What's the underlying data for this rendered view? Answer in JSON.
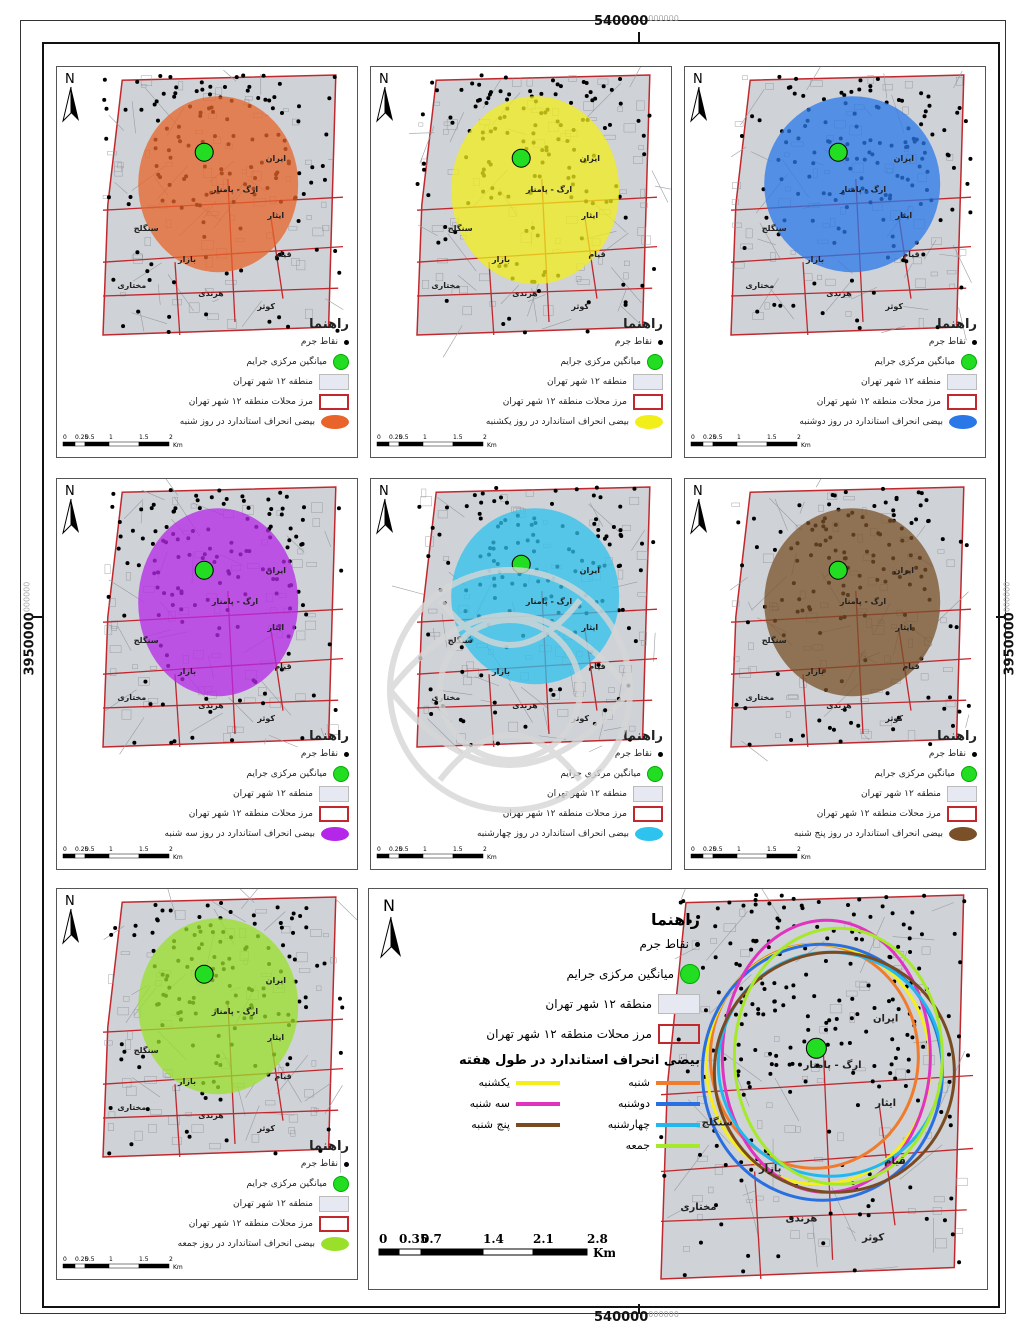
{
  "coords": {
    "x_label": "540000",
    "x_sup": "000000",
    "y_label": "3950000",
    "y_sup": "000000"
  },
  "legend_title": "راهنما",
  "legend_items": {
    "crime_points": "نقاط جرم",
    "mean_center": "میانگین مرکزی جرایم",
    "region": "منطقه ۱۲ شهر تهران",
    "boundary": "مرز محلات منطقه ۱۲ شهر تهران"
  },
  "neighborhoods": {
    "sangelaj": "سنگلج",
    "bazar": "بازار",
    "qiyam": "قیام",
    "hrandi": "هرندی",
    "mokhtari": "مختاری",
    "kowsar": "کوثر",
    "ishar": "ایثار",
    "iran": "ایران",
    "arg": "ارگ - پامنار"
  },
  "north": "N",
  "panels": [
    {
      "ellipse_label": "بیضی انحراف استاندارد در روز شنبه",
      "color": "#e8642a"
    },
    {
      "ellipse_label": "بیضی انحراف استاندارد در روز یکشنبه",
      "color": "#f2ee1a"
    },
    {
      "ellipse_label": "بیضی انحراف استاندارد در روز دوشنبه",
      "color": "#2a78e8"
    },
    {
      "ellipse_label": "بیضی انحراف استاندارد در روز سه شنبه",
      "color": "#b527e8"
    },
    {
      "ellipse_label": "بیضی انحراف استاندارد در روز چهارشنبه",
      "color": "#2ec2ee"
    },
    {
      "ellipse_label": "بیضی انحراف استاندارد در روز پنج شنبه",
      "color": "#7a5028"
    },
    {
      "ellipse_label": "بیضی انحراف استاندارد در روز جمعه",
      "color": "#9ae02a"
    }
  ],
  "small_scale": {
    "ticks": [
      "0",
      "0.25",
      "0.5",
      "1",
      "1.5",
      "2"
    ],
    "unit": "Km"
  },
  "big_legend": {
    "week_title": "بیضی انحراف استاندارد در طول هفته",
    "days": [
      {
        "label": "شنبه",
        "color": "#f07b2a"
      },
      {
        "label": "یکشنبه",
        "color": "#f4ef1a"
      },
      {
        "label": "دوشنبه",
        "color": "#2a6fe0"
      },
      {
        "label": "سه شنبه",
        "color": "#e033c0"
      },
      {
        "label": "چهارشنبه",
        "color": "#22b8ee"
      },
      {
        "label": "پنج شنبه",
        "color": "#7a4a22"
      },
      {
        "label": "جمعه",
        "color": "#a6e82a"
      }
    ]
  },
  "big_scale": {
    "ticks": [
      "0",
      "0.35",
      "0.7",
      "1.4",
      "2.1",
      "2.8"
    ],
    "unit": "Km"
  }
}
